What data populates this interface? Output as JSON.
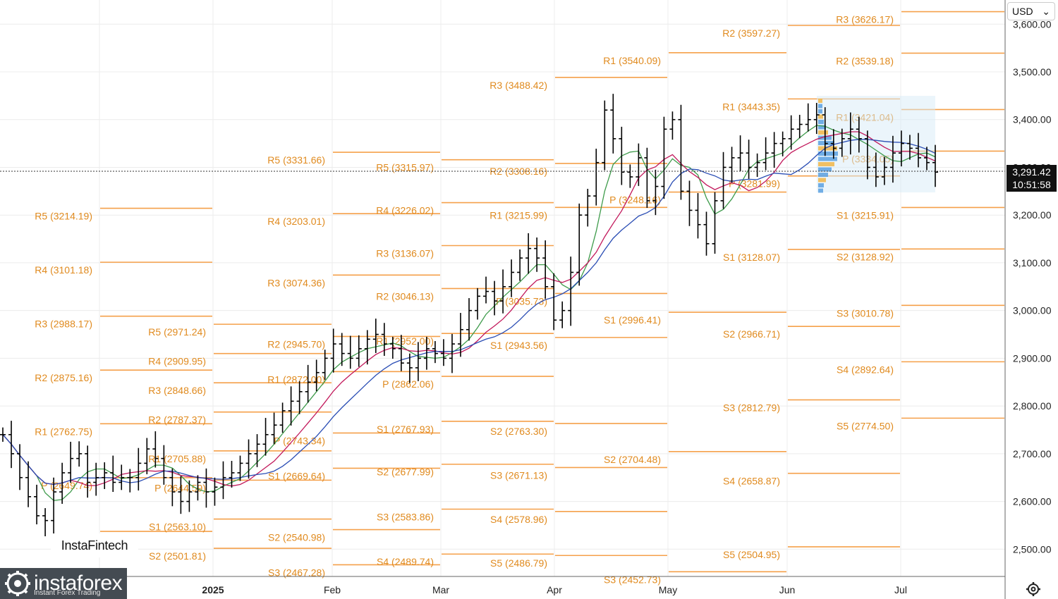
{
  "currency": {
    "label": "USD",
    "caret": "⌄"
  },
  "price_tag": {
    "price": "3,291.42",
    "countdown": "10:51:58"
  },
  "brand": {
    "insta_fintech": "InstaFintech",
    "instaforex": "instaforex",
    "instaforex_sub": "Instant Forex Trading"
  },
  "icons": {
    "settings": "gear-icon",
    "logo": "instaforex-logo-icon"
  },
  "colors": {
    "pivot": "#f5a04a",
    "ma_fast": "#3e9b4b",
    "ma_mid": "#c2185b",
    "ma_slow": "#2a4db4",
    "candles": "#000000"
  },
  "chart_data": {
    "type": "bar",
    "subtype": "ohlc",
    "symbol_currency": "USD",
    "current_price": 3291.42,
    "y_ticks": [
      "2,500.00",
      "2,600.00",
      "2,700.00",
      "2,800.00",
      "2,900.00",
      "3,000.00",
      "3,100.00",
      "3,200.00",
      "3,300.00",
      "3,400.00",
      "3,500.00",
      "3,600.00"
    ],
    "x_labels": [
      "2025",
      "Feb",
      "Mar",
      "Apr",
      "May",
      "Jun",
      "Jul"
    ],
    "ylim": [
      2430,
      3640
    ],
    "grid": true,
    "pivot_levels": [
      {
        "period": "Dec",
        "levels": [
          {
            "label": "R5 (3214.19)",
            "value": 3214.19
          },
          {
            "label": "R4 (3101.18)",
            "value": 3101.18
          },
          {
            "label": "R3 (2988.17)",
            "value": 2988.17
          },
          {
            "label": "R2 (2875.16)",
            "value": 2875.16
          },
          {
            "label": "R1 (2762.75)",
            "value": 2762.75
          },
          {
            "label": "P (2649.74)",
            "value": 2649.74
          },
          {
            "label": "S1 (2",
            "value": 2537.33
          }
        ]
      },
      {
        "period": "Jan",
        "levels": [
          {
            "label": "R5 (2971.24)",
            "value": 2971.24
          },
          {
            "label": "R4 (2909.95)",
            "value": 2909.95
          },
          {
            "label": "R3 (2848.66)",
            "value": 2848.66
          },
          {
            "label": "R2 (2787.37)",
            "value": 2787.37
          },
          {
            "label": "R1 (2705.88)",
            "value": 2705.88
          },
          {
            "label": "P (2644.59)",
            "value": 2644.59
          },
          {
            "label": "S1 (2563.10)",
            "value": 2563.1
          },
          {
            "label": "S2 (2501.81)",
            "value": 2501.81
          }
        ]
      },
      {
        "period": "Feb",
        "levels": [
          {
            "label": "R5 (3331.66)",
            "value": 3331.66
          },
          {
            "label": "R4 (3203.01)",
            "value": 3203.01
          },
          {
            "label": "R3 (3074.36)",
            "value": 3074.36
          },
          {
            "label": "R2 (2945.70)",
            "value": 2945.7
          },
          {
            "label": "R1 (2872.00)",
            "value": 2872.0
          },
          {
            "label": "P (2743.34)",
            "value": 2743.34
          },
          {
            "label": "S1 (2669.64)",
            "value": 2669.64
          },
          {
            "label": "S2 (2540.98)",
            "value": 2540.98
          },
          {
            "label": "S3 (2467.28)",
            "value": 2467.28
          }
        ]
      },
      {
        "period": "Mar",
        "levels": [
          {
            "label": "R5 (3315.97)",
            "value": 3315.97
          },
          {
            "label": "R4 (3226.02)",
            "value": 3226.02
          },
          {
            "label": "R3 (3136.07)",
            "value": 3136.07
          },
          {
            "label": "R2 (3046.13)",
            "value": 3046.13
          },
          {
            "label": "R1 (2952.00)",
            "value": 2952.0
          },
          {
            "label": "P (2862.06)",
            "value": 2862.06
          },
          {
            "label": "S1 (2767.93)",
            "value": 2767.93
          },
          {
            "label": "S2 (2677.99)",
            "value": 2677.99
          },
          {
            "label": "S3 (2583.86)",
            "value": 2583.86
          },
          {
            "label": "S4 (2489.74)",
            "value": 2489.74
          }
        ]
      },
      {
        "period": "Apr",
        "levels": [
          {
            "label": "R3 (3488.42)",
            "value": 3488.42
          },
          {
            "label": "R2 (3308.16)",
            "value": 3308.16
          },
          {
            "label": "R1 (3215.99)",
            "value": 3215.99
          },
          {
            "label": "P (3035.73)",
            "value": 3035.73
          },
          {
            "label": "S1 (2943.56)",
            "value": 2943.56
          },
          {
            "label": "S2 (2763.30)",
            "value": 2763.3
          },
          {
            "label": "S3 (2671.13)",
            "value": 2671.13
          },
          {
            "label": "S4 (2578.96)",
            "value": 2578.96
          },
          {
            "label": "S5 (2486.79)",
            "value": 2486.79
          }
        ]
      },
      {
        "period": "May",
        "levels": [
          {
            "label": "R1 (3540.09)",
            "value": 3540.09
          },
          {
            "label": "P (3248.16)",
            "value": 3248.16
          },
          {
            "label": "S1 (2996.41)",
            "value": 2996.41
          },
          {
            "label": "S2 (2704.48)",
            "value": 2704.48
          },
          {
            "label": "S3 (2452.73)",
            "value": 2452.73
          }
        ]
      },
      {
        "period": "Jun",
        "levels": [
          {
            "label": "R2 (3597.27)",
            "value": 3597.27
          },
          {
            "label": "R1 (3443.35)",
            "value": 3443.35
          },
          {
            "label": "P (3281.99)",
            "value": 3281.99
          },
          {
            "label": "S1 (3128.07)",
            "value": 3128.07
          },
          {
            "label": "S2 (2966.71)",
            "value": 2966.71
          },
          {
            "label": "S3 (2812.79)",
            "value": 2812.79
          },
          {
            "label": "S4 (2658.87)",
            "value": 2658.87
          },
          {
            "label": "S5 (2504.95)",
            "value": 2504.95
          }
        ]
      },
      {
        "period": "Jul",
        "levels": [
          {
            "label": "R3 (3626.17)",
            "value": 3626.17
          },
          {
            "label": "R2 (3539.18)",
            "value": 3539.18
          },
          {
            "label": "R1 (3421.04)",
            "value": 3421.04
          },
          {
            "label": "P (3334.05)",
            "value": 3334.05
          },
          {
            "label": "S1 (3215.91)",
            "value": 3215.91
          },
          {
            "label": "S2 (3128.92)",
            "value": 3128.92
          },
          {
            "label": "S3 (3010.78)",
            "value": 3010.78
          },
          {
            "label": "S4 (2892.64)",
            "value": 2892.64
          },
          {
            "label": "S5 (2774.50)",
            "value": 2774.5
          }
        ]
      }
    ],
    "closes": [
      2740,
      2700,
      2650,
      2610,
      2570,
      2560,
      2620,
      2660,
      2690,
      2700,
      2640,
      2650,
      2660,
      2640,
      2650,
      2650,
      2680,
      2710,
      2690,
      2650,
      2620,
      2600,
      2620,
      2640,
      2620,
      2630,
      2650,
      2660,
      2680,
      2700,
      2720,
      2740,
      2760,
      2790,
      2810,
      2830,
      2850,
      2870,
      2900,
      2930,
      2910,
      2900,
      2920,
      2940,
      2950,
      2930,
      2920,
      2890,
      2880,
      2900,
      2920,
      2910,
      2900,
      2930,
      2960,
      3000,
      3030,
      3040,
      3020,
      3050,
      3080,
      3110,
      3130,
      3110,
      3050,
      2980,
      3000,
      3080,
      3200,
      3240,
      3310,
      3420,
      3360,
      3290,
      3280,
      3320,
      3230,
      3260,
      3380,
      3400,
      3250,
      3210,
      3180,
      3140,
      3230,
      3300,
      3320,
      3330,
      3300,
      3310,
      3330,
      3350,
      3360,
      3380,
      3390,
      3400,
      3410,
      3350,
      3340,
      3360,
      3380,
      3360,
      3300,
      3280,
      3300,
      3330,
      3350,
      3340,
      3320,
      3310,
      3290
    ]
  }
}
